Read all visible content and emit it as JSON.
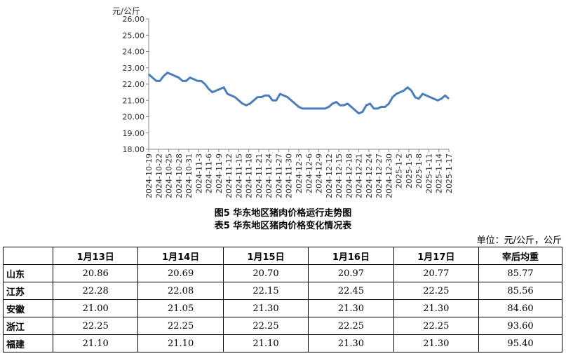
{
  "chart_data": {
    "type": "line",
    "ylabel": "元/公斤",
    "ylim": [
      18,
      26
    ],
    "yticks": [
      "18.00",
      "19.00",
      "20.00",
      "21.00",
      "22.00",
      "23.00",
      "24.00",
      "25.00",
      "26.00"
    ],
    "xtick_labels": [
      "2024-10-19",
      "2024-10-22",
      "2024-10-25",
      "2024-10-28",
      "2024-10-31",
      "2024-11-3",
      "2024-11-6",
      "2024-11-9",
      "2024-11-12",
      "2024-11-15",
      "2024-11-18",
      "2024-11-21",
      "2024-11-24",
      "2024-11-27",
      "2024-11-30",
      "2024-12-3",
      "2024-12-6",
      "2024-12-9",
      "2024-12-12",
      "2024-12-15",
      "2024-12-18",
      "2024-12-21",
      "2024-12-24",
      "2024-12-27",
      "2024-12-30",
      "2025-1-2",
      "2025-1-5",
      "2025-1-8",
      "2025-1-11",
      "2025-1-14",
      "2025-1-17"
    ],
    "series_color": "#4a7ebb",
    "series": [
      {
        "values": [
          22.6,
          22.4,
          22.2,
          22.2,
          22.5,
          22.7,
          22.6,
          22.5,
          22.4,
          22.2,
          22.2,
          22.4,
          22.3,
          22.2,
          22.2,
          22.0,
          21.7,
          21.5,
          21.6,
          21.7,
          21.8,
          21.4,
          21.3,
          21.2,
          21.0,
          20.8,
          20.7,
          20.8,
          21.0,
          21.2,
          21.2,
          21.3,
          21.3,
          21.0,
          21.0,
          21.4,
          21.3,
          21.2,
          21.0,
          20.8,
          20.6,
          20.5,
          20.5,
          20.5,
          20.5,
          20.5,
          20.5,
          20.5,
          20.6,
          20.8,
          20.9,
          20.7,
          20.7,
          20.8,
          20.6,
          20.4,
          20.2,
          20.3,
          20.7,
          20.8,
          20.5,
          20.5,
          20.6,
          20.6,
          20.8,
          21.2,
          21.4,
          21.5,
          21.6,
          21.8,
          21.6,
          21.2,
          21.1,
          21.4,
          21.3,
          21.2,
          21.1,
          21.0,
          21.1,
          21.3,
          21.1
        ]
      }
    ]
  },
  "captions": {
    "figure": "图5  华东地区猪肉价格运行走势图",
    "table": "表5  华东地区猪肉价格变化情况表"
  },
  "table": {
    "unit": "单位：元/公斤，公斤",
    "headers": [
      "",
      "1月13日",
      "1月14日",
      "1月15日",
      "1月16日",
      "1月17日",
      "宰后均重"
    ],
    "rows": [
      [
        "山东",
        "20.86",
        "20.69",
        "20.70",
        "20.97",
        "20.77",
        "85.77"
      ],
      [
        "江苏",
        "22.28",
        "22.08",
        "22.15",
        "22.45",
        "22.25",
        "85.56"
      ],
      [
        "安徽",
        "21.00",
        "21.05",
        "21.30",
        "21.30",
        "21.30",
        "84.60"
      ],
      [
        "浙江",
        "22.25",
        "22.25",
        "22.25",
        "22.25",
        "22.25",
        "93.60"
      ],
      [
        "福建",
        "21.10",
        "21.10",
        "21.10",
        "21.30",
        "21.30",
        "95.40"
      ]
    ]
  }
}
